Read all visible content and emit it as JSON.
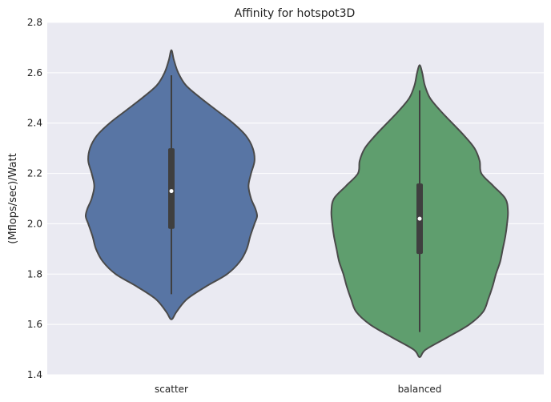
{
  "chart_data": {
    "type": "violin",
    "title": "Affinity for hotspot3D",
    "xlabel": "",
    "ylabel": "(Mflops/sec)/Watt",
    "ylim": [
      1.4,
      2.8
    ],
    "yticks": [
      "1.4",
      "1.6",
      "1.8",
      "2.0",
      "2.2",
      "2.4",
      "2.6",
      "2.8"
    ],
    "grid": true,
    "colors": {
      "background": "#eaeaf2",
      "grid": "#ffffff",
      "outline": "#4a4a4a"
    },
    "categories": [
      "scatter",
      "balanced"
    ],
    "series": [
      {
        "category": "scatter",
        "color": "#5875a4",
        "min": 1.72,
        "q1": 1.98,
        "median": 2.13,
        "q3": 2.3,
        "max": 2.59,
        "density": [
          [
            1.62,
            0.0
          ],
          [
            1.65,
            0.06
          ],
          [
            1.7,
            0.18
          ],
          [
            1.75,
            0.4
          ],
          [
            1.8,
            0.65
          ],
          [
            1.85,
            0.8
          ],
          [
            1.9,
            0.88
          ],
          [
            1.95,
            0.92
          ],
          [
            2.0,
            0.97
          ],
          [
            2.03,
            1.0
          ],
          [
            2.06,
            0.98
          ],
          [
            2.1,
            0.93
          ],
          [
            2.15,
            0.9
          ],
          [
            2.2,
            0.93
          ],
          [
            2.25,
            0.97
          ],
          [
            2.3,
            0.95
          ],
          [
            2.35,
            0.87
          ],
          [
            2.4,
            0.72
          ],
          [
            2.45,
            0.53
          ],
          [
            2.5,
            0.34
          ],
          [
            2.55,
            0.17
          ],
          [
            2.6,
            0.08
          ],
          [
            2.65,
            0.03
          ],
          [
            2.69,
            0.0
          ]
        ]
      },
      {
        "category": "balanced",
        "color": "#5f9e6e",
        "min": 1.57,
        "q1": 1.88,
        "median": 2.02,
        "q3": 2.16,
        "max": 2.53,
        "density": [
          [
            1.47,
            0.0
          ],
          [
            1.5,
            0.07
          ],
          [
            1.55,
            0.33
          ],
          [
            1.6,
            0.58
          ],
          [
            1.65,
            0.74
          ],
          [
            1.7,
            0.8
          ],
          [
            1.75,
            0.85
          ],
          [
            1.8,
            0.89
          ],
          [
            1.85,
            0.94
          ],
          [
            1.9,
            0.97
          ],
          [
            1.95,
            1.0
          ],
          [
            2.0,
            1.02
          ],
          [
            2.05,
            1.03
          ],
          [
            2.1,
            1.0
          ],
          [
            2.15,
            0.86
          ],
          [
            2.2,
            0.72
          ],
          [
            2.25,
            0.7
          ],
          [
            2.3,
            0.64
          ],
          [
            2.35,
            0.52
          ],
          [
            2.4,
            0.38
          ],
          [
            2.45,
            0.24
          ],
          [
            2.5,
            0.12
          ],
          [
            2.55,
            0.06
          ],
          [
            2.6,
            0.03
          ],
          [
            2.63,
            0.0
          ]
        ]
      }
    ]
  }
}
